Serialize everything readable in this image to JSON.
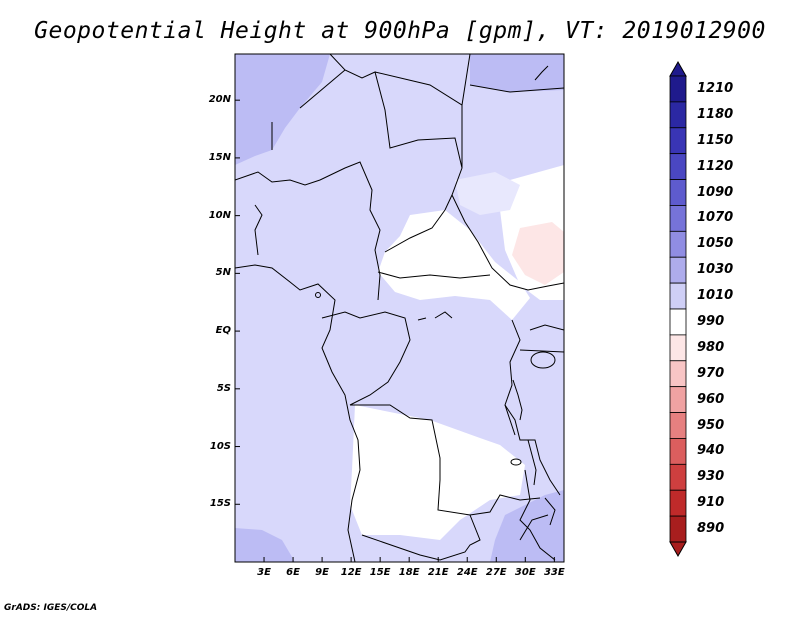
{
  "title": "Geopotential Height at 900hPa [gpm], VT: 2019012900",
  "credit": "GrADS: IGES/COLA",
  "map": {
    "lat_labels": [
      "20N",
      "15N",
      "10N",
      "5N",
      "EQ",
      "5S",
      "10S",
      "15S"
    ],
    "lon_labels": [
      "3E",
      "6E",
      "9E",
      "12E",
      "15E",
      "18E",
      "21E",
      "24E",
      "27E",
      "30E",
      "33E"
    ],
    "lon_range": [
      0,
      34
    ],
    "lat_range": [
      -20,
      24
    ]
  },
  "colorbar": {
    "levels": [
      "1210",
      "1180",
      "1150",
      "1120",
      "1090",
      "1070",
      "1050",
      "1030",
      "1010",
      "990",
      "980",
      "970",
      "960",
      "950",
      "940",
      "930",
      "910",
      "890"
    ],
    "colors": [
      "#1f1a8c",
      "#2b28a3",
      "#3935b5",
      "#4a47c2",
      "#5e5bce",
      "#7673d9",
      "#908de3",
      "#aeacec",
      "#cfcff6",
      "#ffffff",
      "#fde6e6",
      "#f8c5c5",
      "#f0a2a2",
      "#e68080",
      "#db5e5e",
      "#ce3f3f",
      "#bf2a2a",
      "#a81e1e"
    ]
  }
}
